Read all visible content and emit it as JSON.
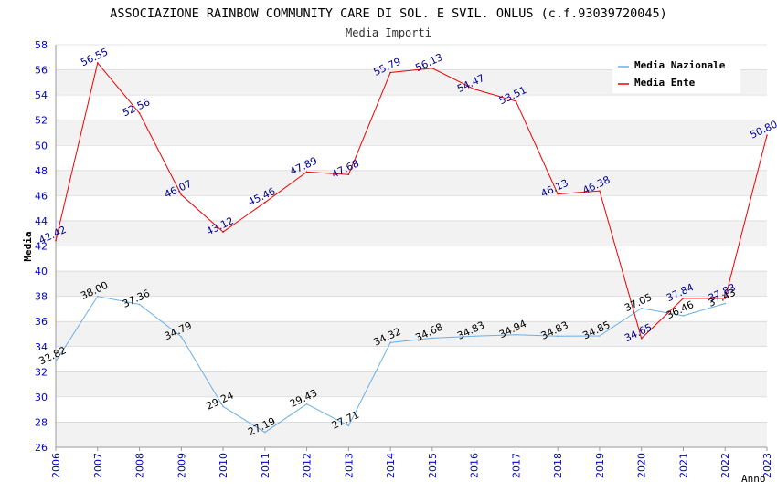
{
  "chart_data": {
    "type": "line",
    "title": "ASSOCIAZIONE RAINBOW COMMUNITY CARE DI SOL. E SVIL. ONLUS (c.f.93039720045)",
    "subtitle": "Media Importi",
    "xlabel": "Anno",
    "ylabel": "Media",
    "ylim": [
      26,
      58
    ],
    "yticks": [
      26,
      28,
      30,
      32,
      34,
      36,
      38,
      40,
      42,
      44,
      46,
      48,
      50,
      52,
      54,
      56,
      58
    ],
    "x": [
      "2006",
      "2007",
      "2008",
      "2009",
      "2010",
      "2011",
      "2012",
      "2013",
      "2014",
      "2015",
      "2016",
      "2017",
      "2018",
      "2019",
      "2020",
      "2021",
      "2022",
      "2023"
    ],
    "grid": "horizontal alternating bands",
    "legend_position": "top-right",
    "series": [
      {
        "name": "Media Nazionale",
        "color": "#6aaee8",
        "label_color": "#000000",
        "values": [
          32.82,
          38.0,
          37.36,
          34.79,
          29.24,
          27.19,
          29.43,
          27.71,
          34.32,
          34.68,
          34.83,
          34.94,
          34.83,
          34.85,
          37.05,
          36.46,
          37.43,
          null
        ],
        "labels": [
          "32.82",
          "38.00",
          "37.36",
          "34.79",
          "29.24",
          "27.19",
          "29.43",
          "27.71",
          "34.32",
          "34.68",
          "34.83",
          "34.94",
          "34.83",
          "34.85",
          "37.05",
          "36.46",
          "37.43",
          ""
        ]
      },
      {
        "name": "Media Ente",
        "color": "#ee0000",
        "label_color": "#00008b",
        "values": [
          42.42,
          56.55,
          52.56,
          46.07,
          43.12,
          45.46,
          47.89,
          47.68,
          55.79,
          56.13,
          54.47,
          53.51,
          46.13,
          46.38,
          34.65,
          37.84,
          37.83,
          50.8
        ],
        "labels": [
          "42.42",
          "56.55",
          "52.56",
          "46.07",
          "43.12",
          "45.46",
          "47.89",
          "47.68",
          "55.79",
          "56.13",
          "54.47",
          "53.51",
          "46.13",
          "46.38",
          "34.65",
          "37.84",
          "37.83",
          "50.80"
        ]
      }
    ]
  },
  "colors": {
    "tick_labels": "#0000cc",
    "band": "#f2f2f2",
    "grid_line": "#cccccc"
  }
}
